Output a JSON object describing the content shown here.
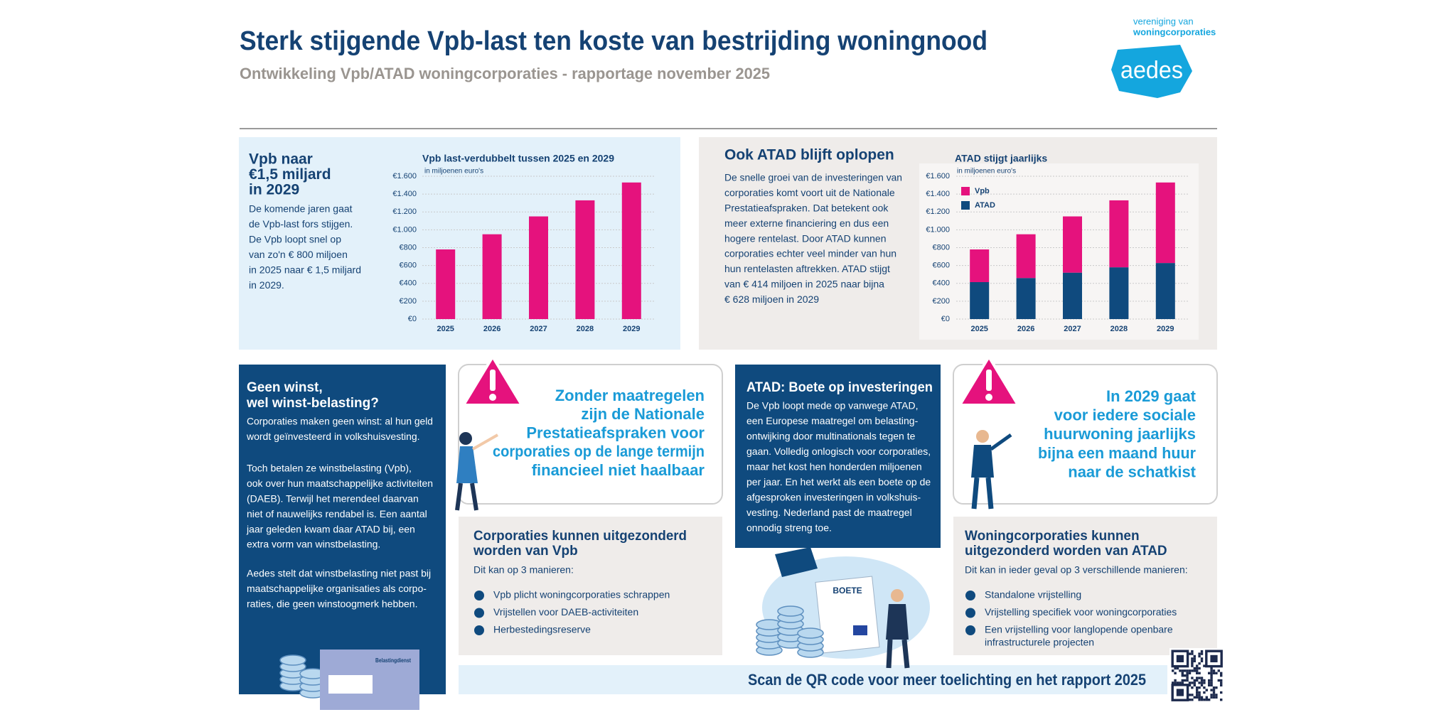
{
  "header": {
    "title": "Sterk stijgende Vpb-last ten koste van bestrijding woningnood",
    "subtitle": "Ontwikkeling Vpb/ATAD woningcorporaties - rapportage november 2025",
    "logo_top": "vereniging van",
    "logo_bottom": "woningcorporaties",
    "logo": "aedes"
  },
  "vpb_panel": {
    "heading": [
      "Vpb naar",
      "€1,5 miljard",
      "in 2029"
    ],
    "body": [
      "De komende jaren gaat",
      "de Vpb-last fors stijgen.",
      "De Vpb loopt snel op",
      "van zo'n € 800 miljoen",
      "in 2025 naar € 1,5 miljard",
      "in 2029."
    ]
  },
  "atad_panel": {
    "heading": "Ook ATAD blijft oplopen",
    "body": [
      "De snelle groei van de investeringen van",
      "corporaties komt voort uit de Nationale",
      "Prestatieafspraken. Dat betekent ook",
      "meer externe financiering en dus een",
      "hogere rentelast. Door ATAD kunnen",
      "corporaties echter veel minder van hun",
      "hun rentelasten aftrekken. ATAD stijgt",
      "van € 414 miljoen in 2025 naar bijna",
      "€ 628 miljoen in 2029"
    ]
  },
  "chart_data": [
    {
      "type": "bar",
      "title": "Vpb last-verdubbelt tussen 2025 en 2029",
      "subtitle": "in miljoenen euro's",
      "categories": [
        "2025",
        "2026",
        "2027",
        "2028",
        "2029"
      ],
      "values": [
        780,
        950,
        1150,
        1330,
        1530
      ],
      "color": "#e5127d",
      "ylim": [
        0,
        1600
      ],
      "yticks": [
        {
          "value": 0,
          "label": "€0"
        },
        {
          "value": 200,
          "label": "€200"
        },
        {
          "value": 400,
          "label": "€400"
        },
        {
          "value": 600,
          "label": "€600"
        },
        {
          "value": 800,
          "label": "€800"
        },
        {
          "value": 1000,
          "label": "€1.000"
        },
        {
          "value": 1200,
          "label": "€1.200"
        },
        {
          "value": 1400,
          "label": "€1.400"
        },
        {
          "value": 1600,
          "label": "€1.600"
        }
      ],
      "grid": true
    },
    {
      "type": "stacked_bar",
      "title": "ATAD stijgt jaarlijks",
      "subtitle": "in miljoenen euro's",
      "categories": [
        "2025",
        "2026",
        "2027",
        "2028",
        "2029"
      ],
      "series": [
        {
          "name": "Vpb",
          "color": "#e5127d",
          "values": [
            366,
            490,
            630,
            750,
            902
          ]
        },
        {
          "name": "ATAD",
          "color": "#0f4a7e",
          "values": [
            414,
            460,
            520,
            580,
            628
          ]
        }
      ],
      "ylim": [
        0,
        1600
      ],
      "yticks": [
        {
          "value": 0,
          "label": "€0"
        },
        {
          "value": 200,
          "label": "€200"
        },
        {
          "value": 400,
          "label": "€400"
        },
        {
          "value": 600,
          "label": "€600"
        },
        {
          "value": 800,
          "label": "€800"
        },
        {
          "value": 1000,
          "label": "€1.000"
        },
        {
          "value": 1200,
          "label": "€1.200"
        },
        {
          "value": 1400,
          "label": "€1.400"
        },
        {
          "value": 1600,
          "label": "€1.600"
        }
      ],
      "grid": true,
      "legend": "top-left"
    }
  ],
  "geen_winst": {
    "heading": [
      "Geen winst,",
      "wel winst-belasting?"
    ],
    "paragraphs": [
      [
        "Corporaties maken geen winst: al hun geld",
        "wordt geïnvesteerd in volkshuisvesting."
      ],
      [
        "Toch betalen ze winstbelasting (Vpb),",
        "ook over hun maatschappelijke activiteiten",
        "(DAEB). Terwijl het merendeel daarvan",
        "niet of nauwelijks rendabel is. Een aantal",
        "jaar geleden kwam daar ATAD bij, een",
        "extra vorm van winstbelasting."
      ],
      [
        "Aedes stelt dat winstbelasting niet past bij",
        "maatschappelijke organisaties als corpo-",
        "raties, die geen winstoogmerk hebben."
      ]
    ],
    "envelope_label": "Belastingdienst"
  },
  "warning_1": {
    "lines": [
      "Zonder maatregelen",
      "zijn de Nationale",
      "Prestatieafspraken voor",
      "corporaties op de lange termijn",
      "financieel niet haalbaar"
    ]
  },
  "exemption_vpb": {
    "heading": [
      "Corporaties kunnen uitgezonderd",
      "worden van Vpb"
    ],
    "intro": "Dit kan op 3 manieren:",
    "items": [
      [
        "Vpb plicht woningcorporaties schrappen"
      ],
      [
        "Vrijstellen voor DAEB-activiteiten"
      ],
      [
        "Herbestedingsreserve"
      ]
    ]
  },
  "atad_boete": {
    "heading": "ATAD: Boete op investeringen",
    "body": [
      "De Vpb loopt mede op vanwege ATAD,",
      "een Europese maatregel om belasting-",
      "ontwijking door multinationals tegen te",
      "gaan. Volledig onlogisch voor corporaties,",
      "maar het kost hen honderden miljoenen",
      "per jaar. En het werkt als een boete op de",
      "afgesproken investeringen in volkshuis-",
      "vesting. Nederland past de maatregel",
      "onnodig streng toe."
    ],
    "sign": "BOETE"
  },
  "warning_2": {
    "lines": [
      "In 2029 gaat",
      "voor iedere sociale",
      "huurwoning jaarlijks",
      "bijna een maand huur",
      "naar de schatkist"
    ]
  },
  "exemption_atad": {
    "heading": [
      "Woningcorporaties kunnen",
      "uitgezonderd worden van ATAD"
    ],
    "intro": "Dit kan in ieder geval op 3 verschillende manieren:",
    "items": [
      [
        "Standalone vrijstelling"
      ],
      [
        "Vrijstelling specifiek voor woningcorporaties"
      ],
      [
        "Een vrijstelling voor langlopende openbare",
        "infrastructurele projecten"
      ]
    ]
  },
  "footer": {
    "cta": "Scan de QR code voor meer toelichting en het rapport 2025"
  }
}
